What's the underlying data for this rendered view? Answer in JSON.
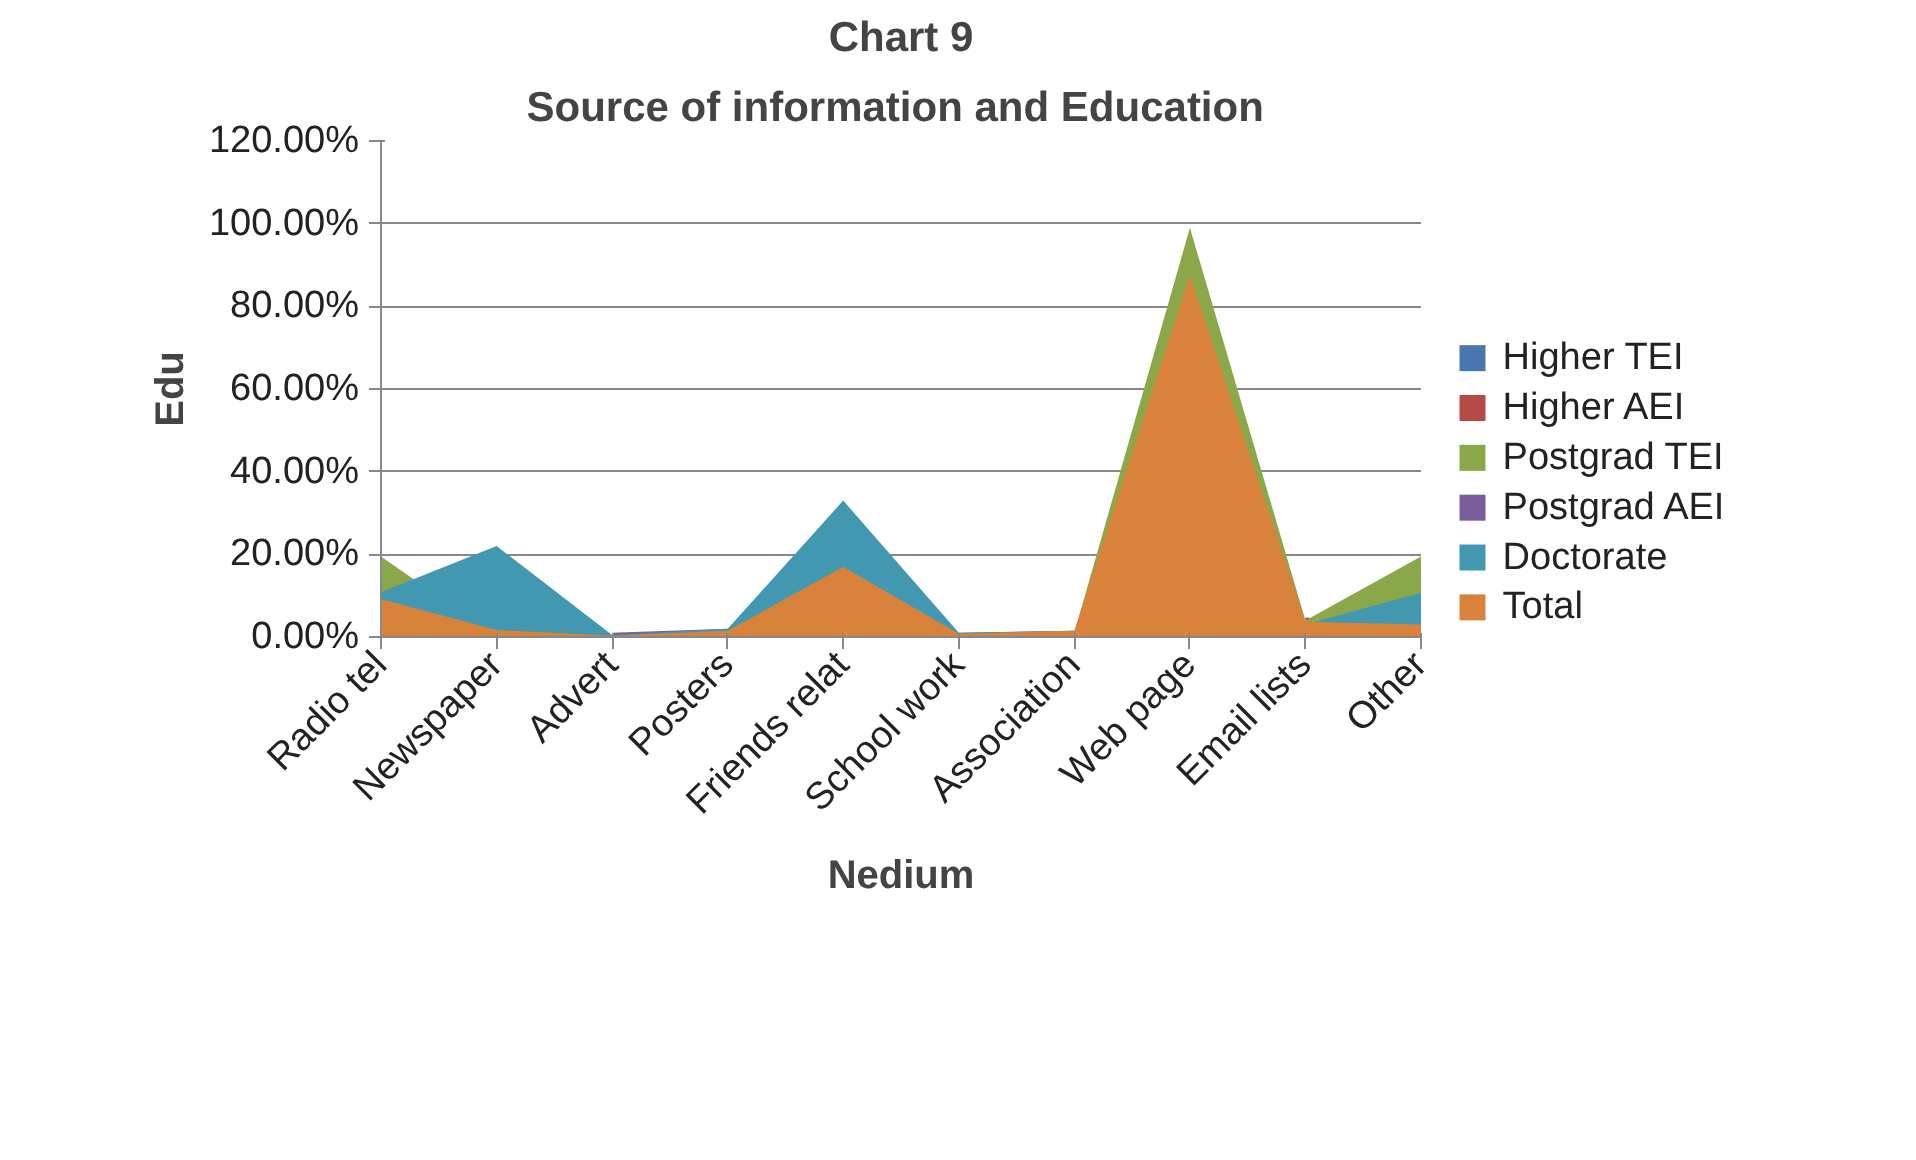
{
  "chart_data": {
    "type": "area",
    "title": "Chart 9",
    "subtitle": "Source of information and  Education",
    "xlabel": "Nedium",
    "ylabel": "Edu",
    "categories": [
      "Radio tel",
      "Newspaper",
      "Advert",
      "Posters",
      "Friends relat",
      "School work",
      "Association",
      "Web page",
      "Email lists",
      "Other"
    ],
    "series": [
      {
        "name": "Higher TEI",
        "color": "#4a76b0",
        "values": [
          null,
          null,
          null,
          null,
          null,
          null,
          null,
          null,
          null,
          null
        ]
      },
      {
        "name": "Higher AEI",
        "color": "#b64a47",
        "values": [
          null,
          null,
          null,
          null,
          null,
          null,
          null,
          null,
          4.7,
          2
        ]
      },
      {
        "name": "Postgrad TEI",
        "color": "#8aa84a",
        "values": [
          19.5,
          0,
          null,
          null,
          null,
          null,
          1,
          99,
          4,
          19.5
        ]
      },
      {
        "name": "Postgrad AEI",
        "color": "#7a5e9c",
        "values": [
          null,
          null,
          1,
          2,
          null,
          1,
          1.5,
          null,
          null,
          null
        ]
      },
      {
        "name": "Doctorate",
        "color": "#4198b0",
        "values": [
          10.8,
          22,
          0.5,
          2,
          33,
          1,
          1.5,
          null,
          3,
          10.7
        ]
      },
      {
        "name": "Total",
        "color": "#d9823b",
        "values": [
          9.2,
          1.7,
          0.3,
          1.5,
          17,
          0.8,
          1.5,
          87.5,
          3.7,
          3
        ]
      }
    ],
    "ylim": [
      0,
      120
    ],
    "yticks": [
      {
        "value": 0,
        "label": "0.00%"
      },
      {
        "value": 20,
        "label": "20.00%"
      },
      {
        "value": 40,
        "label": "40.00%"
      },
      {
        "value": 60,
        "label": "60.00%"
      },
      {
        "value": 80,
        "label": "80.00%"
      },
      {
        "value": 100,
        "label": "100.00%"
      },
      {
        "value": 120,
        "label": "120.00%"
      }
    ],
    "grid": "y",
    "legend": "right"
  }
}
